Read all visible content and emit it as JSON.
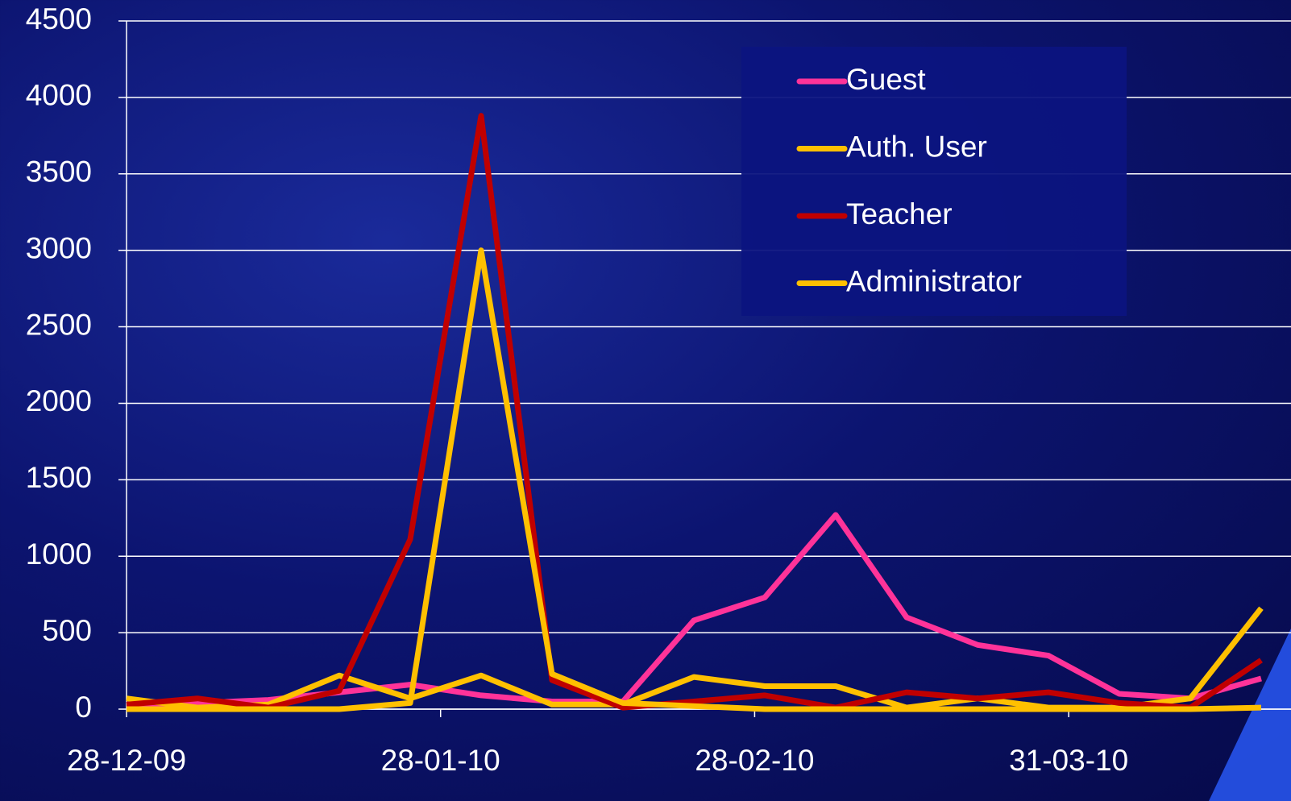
{
  "chart_data": {
    "type": "line",
    "x": [
      "2009-12-28",
      "2010-01-04",
      "2010-01-11",
      "2010-01-18",
      "2010-01-25",
      "2010-02-01",
      "2010-02-08",
      "2010-02-15",
      "2010-02-22",
      "2010-03-01",
      "2010-03-08",
      "2010-03-15",
      "2010-03-22",
      "2010-03-29",
      "2010-04-05",
      "2010-04-12",
      "2010-04-19"
    ],
    "series": [
      {
        "name": "Guest",
        "color": "#ff3399",
        "values": [
          30,
          40,
          60,
          110,
          160,
          90,
          50,
          50,
          580,
          730,
          1270,
          600,
          420,
          350,
          100,
          70,
          200
        ]
      },
      {
        "name": "Auth. User",
        "color": "#ffc000",
        "values": [
          70,
          10,
          30,
          220,
          70,
          220,
          30,
          30,
          210,
          150,
          150,
          10,
          70,
          10,
          10,
          70,
          660
        ]
      },
      {
        "name": "Teacher",
        "color": "#c00000",
        "values": [
          30,
          70,
          10,
          120,
          1110,
          3880,
          190,
          10,
          50,
          90,
          10,
          110,
          70,
          110,
          40,
          10,
          320
        ]
      },
      {
        "name": "Administrator",
        "color": "#ffc000",
        "values": [
          0,
          0,
          0,
          0,
          40,
          3000,
          230,
          40,
          20,
          0,
          0,
          0,
          0,
          0,
          0,
          0,
          10
        ]
      }
    ],
    "xlim": [
      "2009-12-28",
      "2010-04-19"
    ],
    "xticks": [
      {
        "value": "2009-12-28",
        "label": "28-12-09"
      },
      {
        "value": "2010-01-28",
        "label": "28-01-10"
      },
      {
        "value": "2010-02-28",
        "label": "28-02-10"
      },
      {
        "value": "2010-03-31",
        "label": "31-03-10"
      }
    ],
    "ylim": [
      0,
      4500
    ],
    "yticks": [
      0,
      500,
      1000,
      1500,
      2000,
      2500,
      3000,
      3500,
      4000,
      4500
    ],
    "grid": true,
    "legend": "upper right"
  }
}
